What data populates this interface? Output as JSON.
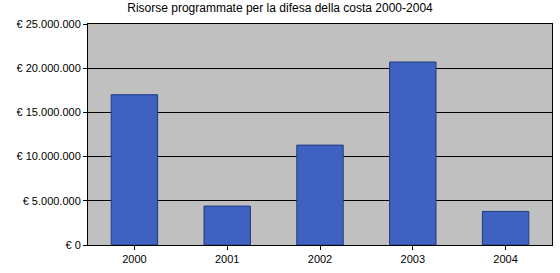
{
  "chart_data": {
    "type": "bar",
    "title": "Risorse programmate per la difesa della costa 2000-2004",
    "categories": [
      "2000",
      "2001",
      "2002",
      "2003",
      "2004"
    ],
    "values": [
      17000000,
      4400000,
      11300000,
      20700000,
      3800000
    ],
    "color": "#3f62c0",
    "ylim": [
      0,
      25000000
    ],
    "yticks": [
      {
        "value": 0,
        "label": "€ 0"
      },
      {
        "value": 5000000,
        "label": "€ 5.000.000"
      },
      {
        "value": 10000000,
        "label": "€ 10.000.000"
      },
      {
        "value": 15000000,
        "label": "€ 15.000.000"
      },
      {
        "value": 20000000,
        "label": "€ 20.000.000"
      },
      {
        "value": 25000000,
        "label": "€ 25.000.000"
      }
    ],
    "grid": true
  }
}
